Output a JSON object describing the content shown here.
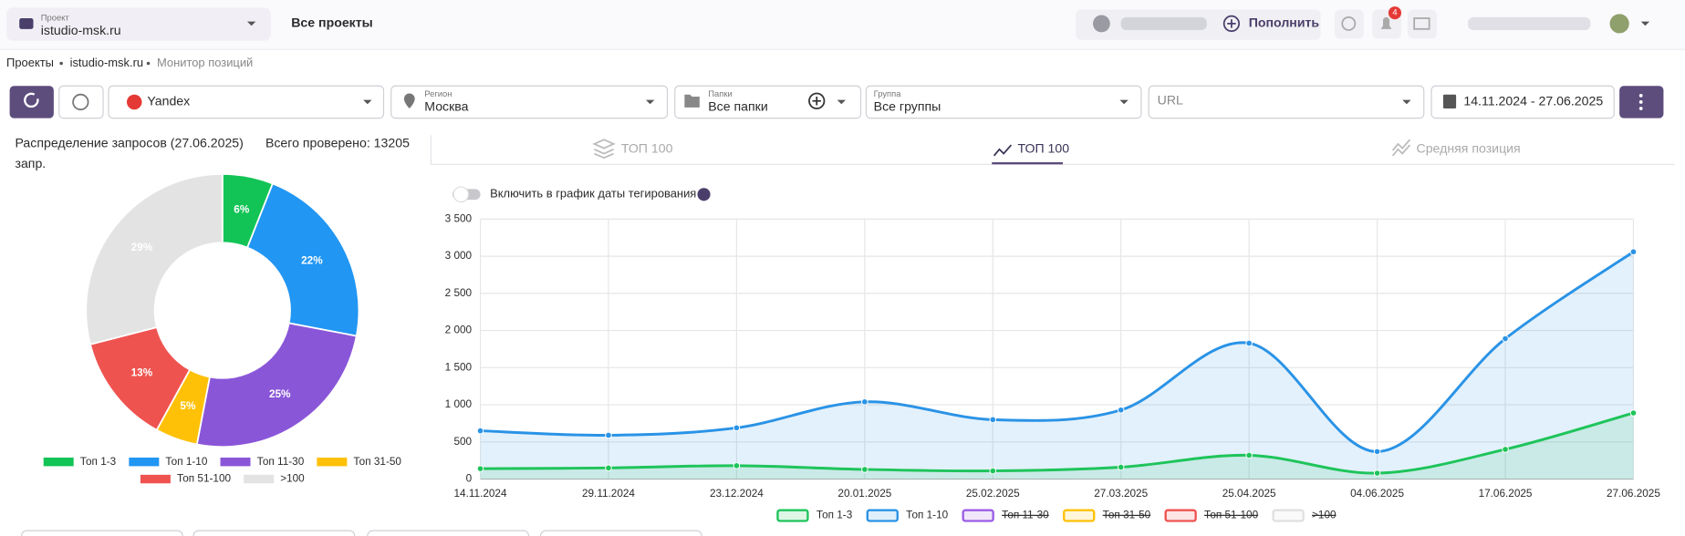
{
  "header": {
    "project_label": "Проект",
    "project": "istudio-msk.ru",
    "all_projects": "Все проекты",
    "top_up": "Пополнить",
    "notifications": "4"
  },
  "breadcrumbs": [
    "Проекты",
    "istudio-msk.ru",
    "Монитор позиций"
  ],
  "toolbar": {
    "engine": "Yandex",
    "region_label": "Регион",
    "region": "Москва",
    "folders_label": "Папки",
    "folders": "Все папки",
    "group_label": "Группа",
    "group": "Все группы",
    "url": "URL",
    "dates": "14.11.2024 - 27.06.2025"
  },
  "summary": {
    "title": "Распределение запросов (27.06.2025)",
    "total": "Всего проверено: 13205",
    "unit": "запр."
  },
  "tabs": [
    "ТОП 100",
    "ТОП 100",
    "Средняя позиция"
  ],
  "toggle": "Включить в график даты тегирования",
  "chart_data": [
    {
      "type": "pie",
      "donut": true,
      "categories": [
        "Топ 1-3",
        "Топ 1-10",
        "Топ 11-30",
        "Топ 31-50",
        "Топ 51-100",
        ">100"
      ],
      "values": [
        6,
        22,
        25,
        5,
        13,
        29
      ],
      "value_labels": [
        "6%",
        "22%",
        "25%",
        "5%",
        "13%",
        "29%"
      ],
      "colors": [
        "#12c455",
        "#2196f3",
        "#8a56d8",
        "#ffc107",
        "#ef5350",
        "#e3e3e3"
      ]
    },
    {
      "type": "area",
      "categories": [
        "14.11.2024",
        "29.11.2024",
        "23.12.2024",
        "20.01.2025",
        "25.02.2025",
        "27.03.2025",
        "25.04.2025",
        "04.06.2025",
        "17.06.2025",
        "27.06.2025"
      ],
      "ylim": [
        0,
        3500
      ],
      "yticks": [
        0,
        500,
        {
          "value": 1000,
          "label": "1 000"
        },
        {
          "value": 1500,
          "label": "1 500"
        },
        {
          "value": 2000,
          "label": "2 000"
        },
        {
          "value": 2500,
          "label": "2 500"
        },
        {
          "value": 3000,
          "label": "3 000"
        },
        {
          "value": 3500,
          "label": "3 500"
        }
      ],
      "grid": true,
      "series": [
        {
          "name": "Топ 1-3",
          "color": "#1ec45a",
          "values": [
            140,
            150,
            180,
            130,
            110,
            160,
            320,
            80,
            400,
            890
          ]
        },
        {
          "name": "Топ 1-10",
          "color": "#2a93e6",
          "values": [
            650,
            590,
            690,
            1040,
            800,
            930,
            1830,
            370,
            1890,
            3060
          ]
        },
        {
          "name": "Топ 11-30",
          "color": "#9b5de5",
          "hidden": true,
          "values": [
            null,
            null,
            null,
            null,
            null,
            null,
            null,
            null,
            null,
            null
          ]
        },
        {
          "name": "Топ 31-50",
          "color": "#ffc107",
          "hidden": true,
          "values": [
            null,
            null,
            null,
            null,
            null,
            null,
            null,
            null,
            null,
            null
          ]
        },
        {
          "name": "Топ 51-100",
          "color": "#ef5350",
          "hidden": true,
          "values": [
            null,
            null,
            null,
            null,
            null,
            null,
            null,
            null,
            null,
            null
          ]
        },
        {
          "name": ">100",
          "color": "#e0e0e0",
          "hidden": true,
          "values": [
            null,
            null,
            null,
            null,
            null,
            null,
            null,
            null,
            null,
            null
          ]
        }
      ]
    }
  ]
}
